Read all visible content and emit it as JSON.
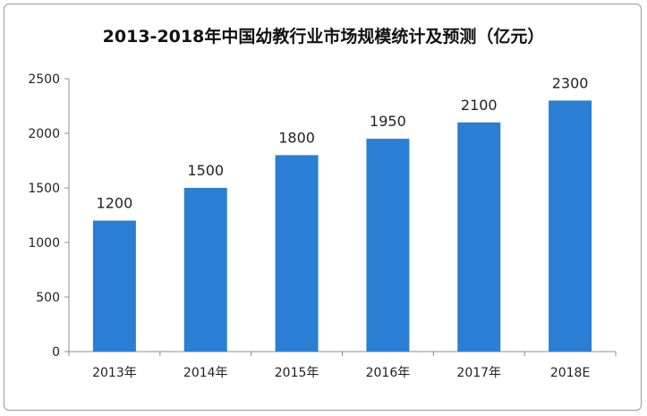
{
  "chart_data": {
    "type": "bar",
    "title": "2013-2018年中国幼教行业市场规模统计及预测（亿元）",
    "xlabel": "",
    "ylabel": "",
    "categories": [
      "2013年",
      "2014年",
      "2015年",
      "2016年",
      "2017年",
      "2018E"
    ],
    "values": [
      1200,
      1500,
      1800,
      1950,
      2100,
      2300
    ],
    "data_labels": [
      "1200",
      "1500",
      "1800",
      "1950",
      "2100",
      "2300"
    ],
    "ylim": [
      0,
      2500
    ],
    "yticks": [
      "0",
      "500",
      "1000",
      "1500",
      "2000",
      "2500"
    ],
    "grid": false,
    "legend": "none",
    "bar_color": "#2a7fd4"
  }
}
